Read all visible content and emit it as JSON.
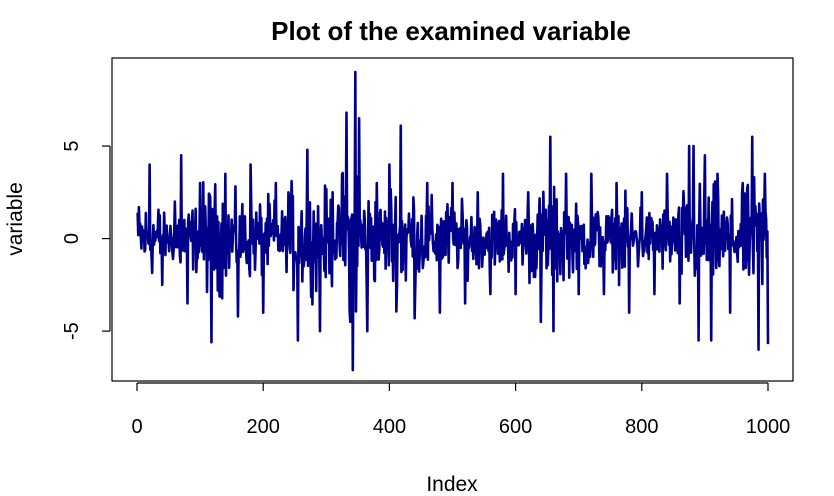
{
  "chart_data": {
    "type": "line",
    "title": "Plot of the examined variable",
    "xlabel": "Index",
    "ylabel": "variable",
    "xlim": [
      0,
      1000
    ],
    "ylim": [
      -7.1,
      9.0
    ],
    "x_ticks": [
      0,
      200,
      400,
      600,
      800,
      1000
    ],
    "x_tick_labels": [
      "0",
      "200",
      "400",
      "600",
      "800",
      "1000"
    ],
    "y_ticks": [
      -5,
      0,
      5
    ],
    "y_tick_labels": [
      "-5",
      "0",
      "5"
    ],
    "grid": false,
    "series": [
      {
        "color": "#00008B",
        "x": [
          1,
          20,
          40,
          60,
          70,
          80,
          100,
          118,
          140,
          160,
          180,
          200,
          220,
          240,
          255,
          270,
          290,
          310,
          325,
          332,
          338,
          342,
          346,
          352,
          365,
          380,
          400,
          418,
          440,
          460,
          480,
          500,
          520,
          540,
          560,
          580,
          600,
          620,
          640,
          655,
          660,
          680,
          700,
          720,
          740,
          760,
          780,
          800,
          820,
          840,
          860,
          875,
          882,
          890,
          900,
          910,
          920,
          940,
          960,
          975,
          985,
          995,
          1000
        ],
        "y": [
          1.4,
          4.0,
          -2.5,
          2.0,
          4.5,
          -3.5,
          3.0,
          -5.6,
          3.5,
          -4.2,
          4.0,
          -4.0,
          3.0,
          2.5,
          -5.5,
          4.8,
          -5.0,
          2.5,
          3.5,
          6.8,
          -4.5,
          -7.1,
          9.0,
          6.5,
          -5.0,
          3.0,
          4.0,
          6.1,
          -4.3,
          3.0,
          -4.0,
          3.0,
          -3.5,
          2.5,
          -3.0,
          3.5,
          -3.0,
          2.5,
          -4.5,
          5.5,
          -5.0,
          3.5,
          -3.0,
          3.5,
          -3.0,
          3.0,
          -4.0,
          2.5,
          -3.0,
          3.5,
          -3.5,
          5.0,
          5.0,
          -5.5,
          4.5,
          -5.5,
          3.5,
          -4.0,
          3.0,
          5.5,
          -6.0,
          3.5,
          -5.7
        ]
      }
    ]
  }
}
